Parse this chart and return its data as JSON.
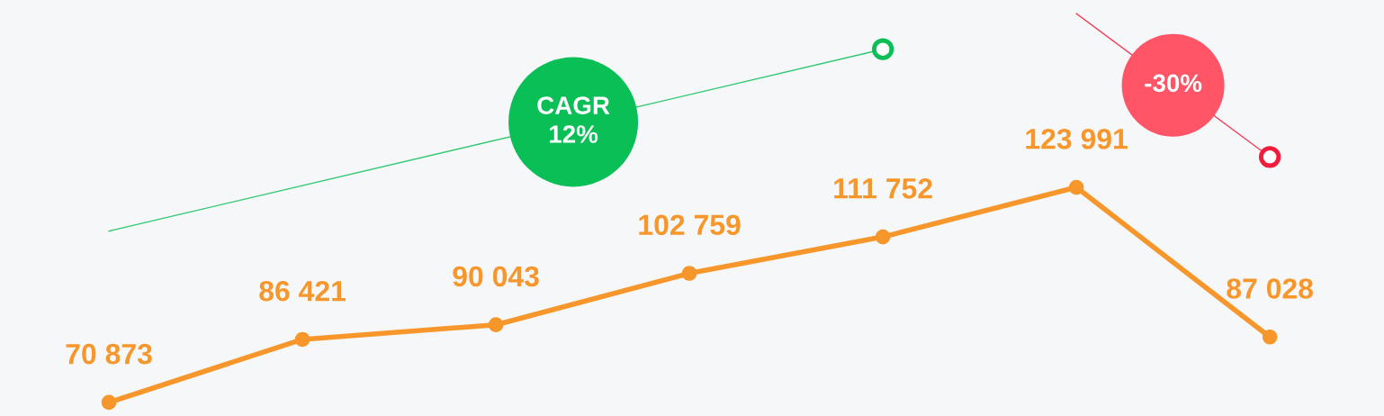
{
  "chart_data": {
    "type": "line",
    "categories": [
      null,
      null,
      null,
      null,
      null,
      null,
      null
    ],
    "series": [
      {
        "color": "#f7962a",
        "values": [
          70873,
          86421,
          90043,
          102759,
          111752,
          123991,
          87028
        ],
        "value_labels": [
          "70 873",
          "86 421",
          "90 043",
          "102 759",
          "111 752",
          "123 991",
          "87 028"
        ]
      },
      {
        "color": "#0bbf57",
        "values": [
          113200,
          null,
          null,
          null,
          158100,
          null,
          null
        ]
      },
      {
        "color": "#f21d3c",
        "values": [
          null,
          null,
          null,
          null,
          null,
          166900,
          131500
        ]
      }
    ],
    "marker": "circle",
    "line_style": "solid",
    "grid": false,
    "annotations": [
      "CAGR\n12%",
      "-30%"
    ]
  }
}
